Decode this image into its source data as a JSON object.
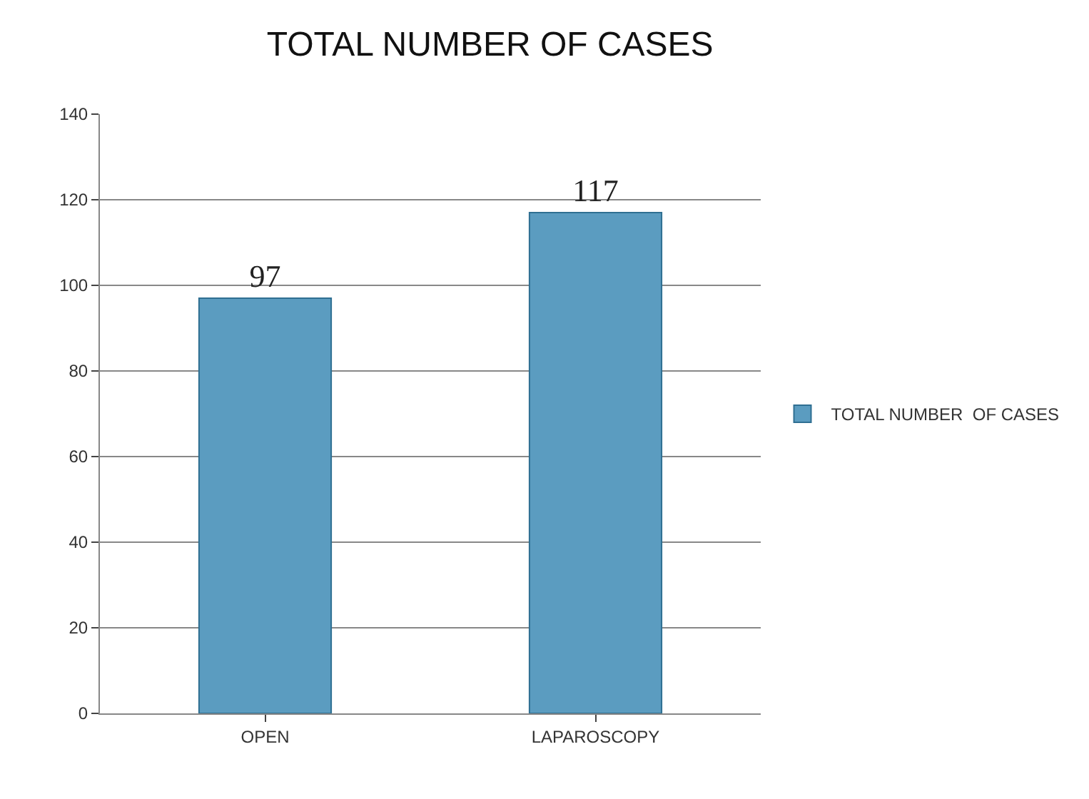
{
  "chart_data": {
    "type": "bar",
    "title": "TOTAL NUMBER OF CASES",
    "categories": [
      "OPEN",
      "LAPAROSCOPY"
    ],
    "series": [
      {
        "name": "TOTAL NUMBER  OF CASES",
        "color": "#5b9cc0",
        "values": [
          97,
          117
        ]
      }
    ],
    "ylim": [
      0,
      140
    ],
    "yticks": [
      0,
      20,
      40,
      60,
      80,
      100,
      120,
      140
    ],
    "grid": "y",
    "legend": "right",
    "data_labels": true
  }
}
